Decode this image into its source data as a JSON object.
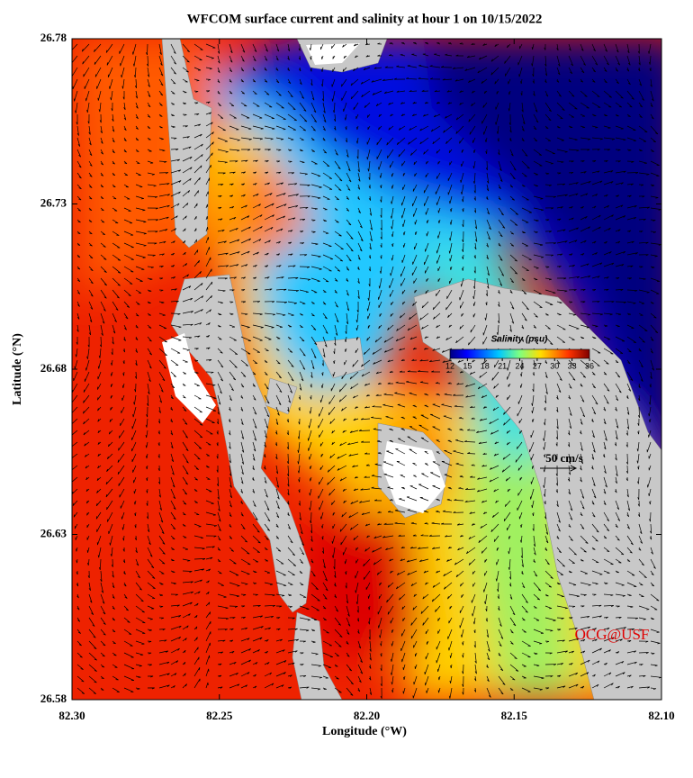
{
  "title": "WFCOM surface current and salinity at hour 1 on 10/15/2022",
  "x_axis": {
    "label": "Longitude (°W)",
    "lim": [
      82.3,
      82.1
    ],
    "ticks": [
      {
        "value": 82.3,
        "label": "82.30"
      },
      {
        "value": 82.25,
        "label": "82.25"
      },
      {
        "value": 82.2,
        "label": "82.20"
      },
      {
        "value": 82.15,
        "label": "82.15"
      },
      {
        "value": 82.1,
        "label": "82.10"
      }
    ]
  },
  "y_axis": {
    "label": "Latitude (°N)",
    "lim": [
      26.58,
      26.78
    ],
    "ticks": [
      26.58,
      26.63,
      26.68,
      26.73,
      26.78
    ]
  },
  "colorbar": {
    "title": "Salinity (psu)",
    "lim": [
      12,
      36
    ],
    "ticks": [
      12,
      15,
      18,
      21,
      24,
      27,
      30,
      33,
      36
    ]
  },
  "scale_arrow": {
    "label": "50 cm/s",
    "value": 50
  },
  "credit": "OCG@USF"
}
